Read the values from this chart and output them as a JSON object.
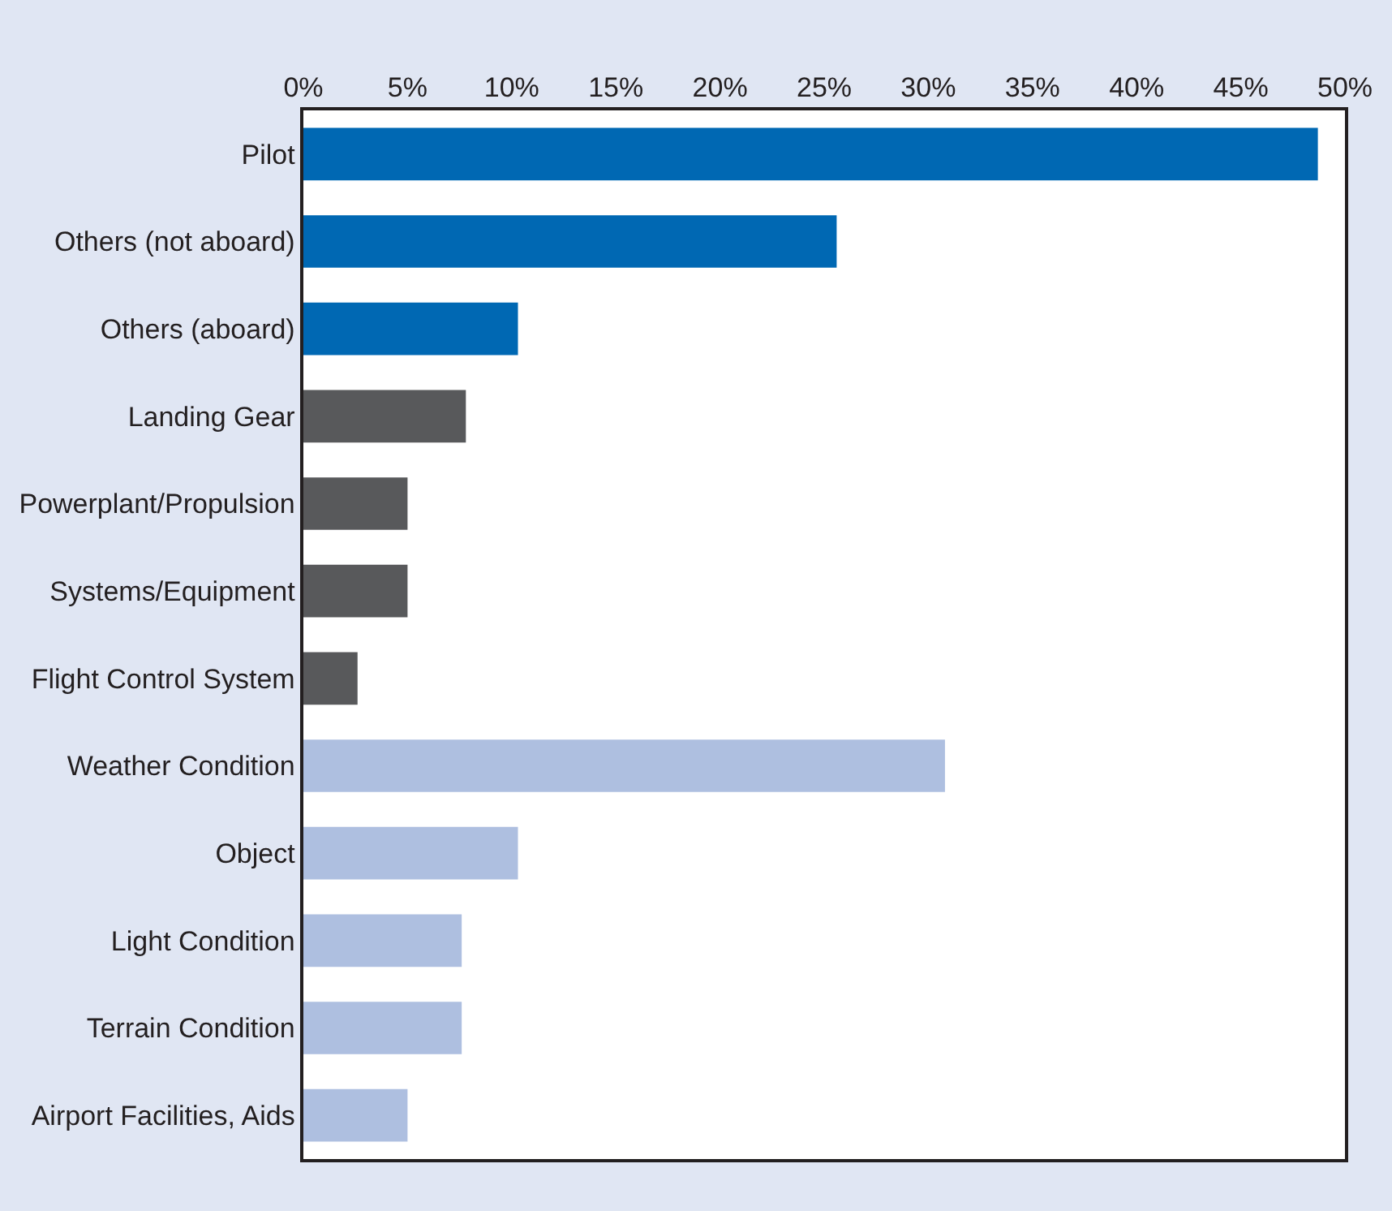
{
  "chart_data": {
    "type": "bar",
    "orientation": "horizontal",
    "categories": [
      "Pilot",
      "Others (not aboard)",
      "Others (aboard)",
      "Landing Gear",
      "Powerplant/Propulsion",
      "Systems/Equipment",
      "Flight Control System",
      "Weather Condition",
      "Object",
      "Light Condition",
      "Terrain Condition",
      "Airport Facilities, Aids"
    ],
    "values": [
      48.7,
      25.6,
      10.3,
      7.8,
      5,
      5,
      2.6,
      30.8,
      10.3,
      7.6,
      7.6,
      5
    ],
    "colors": [
      "#0068b3",
      "#0068b3",
      "#0068b3",
      "#58595b",
      "#58595b",
      "#58595b",
      "#58595b",
      "#aebfe0",
      "#aebfe0",
      "#aebfe0",
      "#aebfe0",
      "#aebfe0"
    ],
    "xlim": [
      0,
      50
    ],
    "xticks": [
      {
        "value": 0,
        "label": "0%"
      },
      {
        "value": 5,
        "label": "5%"
      },
      {
        "value": 10,
        "label": "10%"
      },
      {
        "value": 15,
        "label": "15%"
      },
      {
        "value": 20,
        "label": "20%"
      },
      {
        "value": 25,
        "label": "25%"
      },
      {
        "value": 30,
        "label": "30%"
      },
      {
        "value": 35,
        "label": "35%"
      },
      {
        "value": 40,
        "label": "40%"
      },
      {
        "value": 45,
        "label": "45%"
      },
      {
        "value": 50,
        "label": "50%"
      }
    ]
  }
}
